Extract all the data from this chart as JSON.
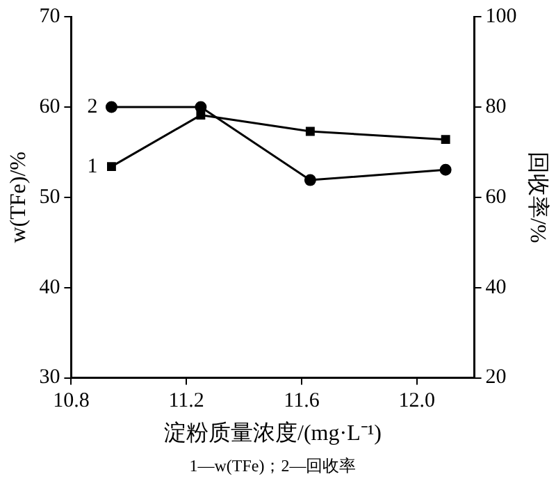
{
  "chart_data": {
    "type": "line",
    "xlabel": "淀粉质量浓度/(mg·L⁻¹)",
    "ylabel": "w(TFe)/%",
    "y2label": "回收率/%",
    "x": [
      10.94,
      11.25,
      11.63,
      12.1
    ],
    "series": [
      {
        "name": "1",
        "color": "#000000",
        "marker": "square",
        "values": [
          53.4,
          59.1,
          57.3,
          56.4
        ]
      },
      {
        "name": "2",
        "color": "#000000",
        "marker": "circle",
        "axis": "y2",
        "values": [
          80,
          80,
          63.8,
          66.1
        ]
      }
    ],
    "xlim": [
      10.8,
      12.2
    ],
    "xticks": [
      {
        "value": 10.8,
        "label": "10.8"
      },
      {
        "value": 11.2,
        "label": "11.2"
      },
      {
        "value": 11.6,
        "label": "11.6"
      },
      {
        "value": 12.0,
        "label": "12.0"
      }
    ],
    "ylim": [
      30,
      70
    ],
    "yticks": [
      30,
      40,
      50,
      60,
      70
    ],
    "y2lim": [
      20,
      100
    ],
    "y2ticks": [
      20,
      40,
      60,
      80,
      100
    ],
    "grid": false,
    "legend": false,
    "line_style": "solid",
    "annotations": [
      "1—w(TFe)；2—回收率"
    ]
  }
}
